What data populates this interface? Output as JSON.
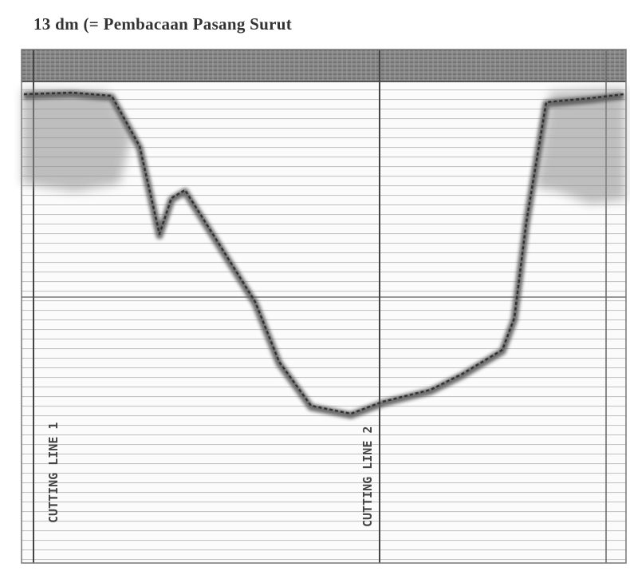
{
  "header": {
    "title": "13 dm (= Pembacaan Pasang Surut"
  },
  "record": {
    "labels": [
      "CUTTING LINE 1",
      "CUTTING LINE 2"
    ]
  }
}
